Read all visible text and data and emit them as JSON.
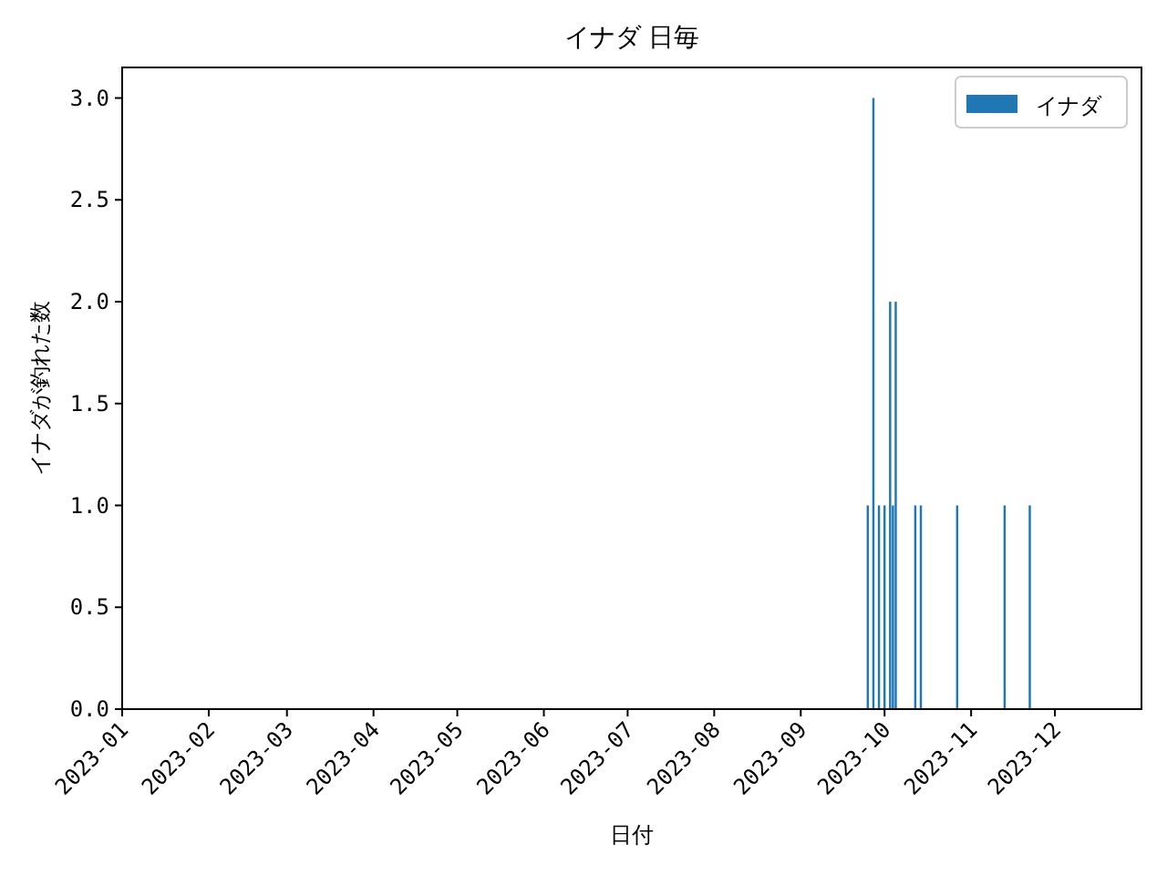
{
  "chart_data": {
    "type": "bar",
    "title": "イナダ 日毎",
    "xlabel": "日付",
    "ylabel": "イナダが釣れた数",
    "x": [
      "2023-09-25",
      "2023-09-27",
      "2023-09-29",
      "2023-10-01",
      "2023-10-03",
      "2023-10-04",
      "2023-10-05",
      "2023-10-12",
      "2023-10-14",
      "2023-10-27",
      "2023-11-13",
      "2023-11-22"
    ],
    "series": [
      {
        "name": "イナダ",
        "color": "#1f77b4",
        "values": [
          1,
          3,
          1,
          1,
          2,
          1,
          2,
          1,
          1,
          1,
          1,
          1
        ]
      }
    ],
    "xlim": [
      "2023-01-01",
      "2024-01-01"
    ],
    "xticks": [
      "2023-01",
      "2023-02",
      "2023-03",
      "2023-04",
      "2023-05",
      "2023-06",
      "2023-07",
      "2023-08",
      "2023-09",
      "2023-10",
      "2023-11",
      "2023-12"
    ],
    "ylim": [
      0,
      3.15
    ],
    "yticks": [
      {
        "value": 0,
        "label": "0.0"
      },
      {
        "value": 0.5,
        "label": "0.5"
      },
      {
        "value": 1,
        "label": "1.0"
      },
      {
        "value": 1.5,
        "label": "1.5"
      },
      {
        "value": 2,
        "label": "2.0"
      },
      {
        "value": 2.5,
        "label": "2.5"
      },
      {
        "value": 3,
        "label": "3.0"
      }
    ],
    "legend": "top right",
    "grid": false
  }
}
